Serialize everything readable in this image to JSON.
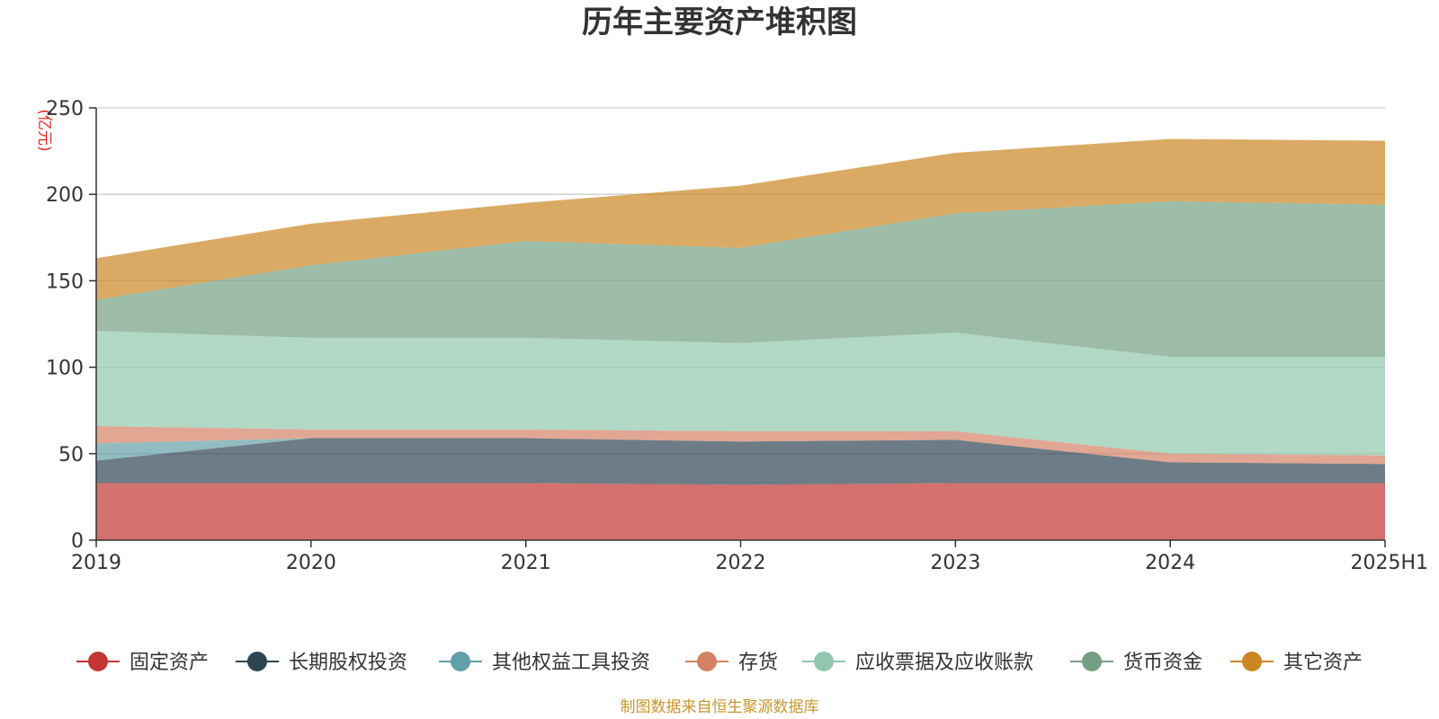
{
  "chart_data": {
    "type": "area",
    "stacked": true,
    "title": "历年主要资产堆积图",
    "unit_label": "(亿元)",
    "x": [
      "2019",
      "2020",
      "2021",
      "2022",
      "2023",
      "2024",
      "2025H1"
    ],
    "ylim": [
      0,
      250
    ],
    "yticks": [
      0,
      50,
      100,
      150,
      200,
      250
    ],
    "grid": true,
    "legend_position": "bottom",
    "series": [
      {
        "name": "固定资产",
        "color": "#c23531",
        "values": [
          33,
          33,
          33,
          32,
          33,
          33,
          33
        ]
      },
      {
        "name": "长期股权投资",
        "color": "#2f4554",
        "values": [
          13,
          26,
          26,
          25,
          25,
          12,
          11
        ]
      },
      {
        "name": "其他权益工具投资",
        "color": "#61a0a8",
        "values": [
          10,
          0,
          0,
          0,
          0,
          0,
          0
        ]
      },
      {
        "name": "存货",
        "color": "#d48265",
        "values": [
          10,
          5,
          5,
          6,
          5,
          5,
          5
        ]
      },
      {
        "name": "应收票据及应收账款",
        "color": "#91c7ae",
        "values": [
          55,
          53,
          53,
          51,
          57,
          56,
          57
        ]
      },
      {
        "name": "货币资金",
        "color": "#749f83",
        "values": [
          18,
          42,
          56,
          55,
          69,
          90,
          88
        ]
      },
      {
        "name": "其它资产",
        "color": "#ca8622",
        "values": [
          24,
          24,
          22,
          36,
          35,
          36,
          37
        ]
      }
    ],
    "source_note": "制图数据来自恒生聚源数据库"
  }
}
